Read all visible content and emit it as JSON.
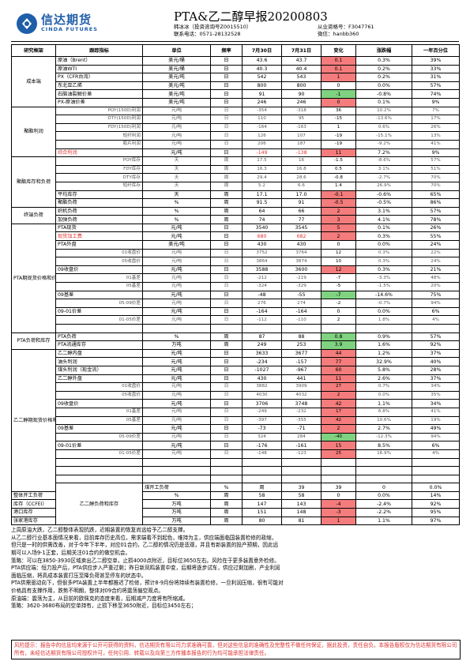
{
  "header": {
    "logo_cn": "信达期货",
    "logo_en": "CINDA FUTURES",
    "title": "PTA&乙二醇早报20200803",
    "author_line1": "韩冰冰（投资咨询号Z0015510）",
    "author_line2": "联系电话：0571-28132528",
    "license_line1": "从业资格号：F3047761",
    "license_line2": "微信：hanbb360"
  },
  "columns": [
    "研究框架",
    "跟踪指标",
    "单位",
    "频率",
    "7月30日",
    "7月31日",
    "变化",
    "涨跌幅",
    "一年百分位"
  ],
  "rows": [
    {
      "cat": "成本端",
      "span": 6,
      "name": "原油（Brent）",
      "unit": "美元/桶",
      "freq": "日",
      "v1": "43.6",
      "v2": "43.7",
      "chg": "0.1",
      "dir": "up",
      "pct": "0.3%",
      "pctile": "39%"
    },
    {
      "name": "原油WTI",
      "unit": "美元/桶",
      "freq": "日",
      "v1": "40.3",
      "v2": "40.4",
      "chg": "0.1",
      "dir": "up",
      "pct": "0.2%",
      "pctile": "33%"
    },
    {
      "name": "PX（CFR台湾）",
      "unit": "美元/吨",
      "freq": "日",
      "v1": "542",
      "v2": "543",
      "chg": "1",
      "dir": "up",
      "pct": "0.2%",
      "pctile": "31%"
    },
    {
      "name": "东北亚乙烯",
      "unit": "美元/吨",
      "freq": "日",
      "v1": "800",
      "v2": "800",
      "chg": "0",
      "dir": "",
      "pct": "0.0%",
      "pctile": "57%"
    },
    {
      "name": "石脑油裂解价差",
      "unit": "美元/吨",
      "freq": "日",
      "v1": "91",
      "v2": "90",
      "chg": "-1",
      "dir": "down",
      "pct": "-0.8%",
      "pctile": "74%"
    },
    {
      "name": "PX-原油价差",
      "unit": "美元/吨",
      "freq": "日",
      "v1": "246",
      "v2": "246",
      "chg": "0",
      "dir": "up",
      "pct": "0.1%",
      "pctile": "9%"
    },
    {
      "cat": "聚酯利润",
      "span": 6,
      "sub": true,
      "name": "POY(150D)利润",
      "unit": "元/吨",
      "freq": "日",
      "v1": "-354",
      "v2": "-318",
      "chg": "36",
      "dir": "",
      "pct": "10.2%",
      "pctile": "7%"
    },
    {
      "sub": true,
      "name": "DTY(150D)利润",
      "unit": "元/吨",
      "freq": "日",
      "v1": "110",
      "v2": "95",
      "chg": "-15",
      "dir": "",
      "pct": "-13.6%",
      "pctile": "17%"
    },
    {
      "sub": true,
      "name": "FDY(150D)利润",
      "unit": "元/吨",
      "freq": "日",
      "v1": "-164",
      "v2": "-163",
      "chg": "1",
      "dir": "",
      "pct": "0.6%",
      "pctile": "26%"
    },
    {
      "sub": true,
      "name": "短纤利润",
      "unit": "元/吨",
      "freq": "日",
      "v1": "126",
      "v2": "107",
      "chg": "-19",
      "dir": "",
      "pct": "-15.1%",
      "pctile": "13%"
    },
    {
      "sub": true,
      "name": "瓶片利润",
      "unit": "元/吨",
      "freq": "日",
      "v1": "206",
      "v2": "187",
      "chg": "-19",
      "dir": "",
      "pct": "-9.2%",
      "pctile": "41%"
    },
    {
      "red": true,
      "name": "综合利润",
      "unit": "元/吨",
      "freq": "日",
      "v1": "-149",
      "v2": "-138",
      "chg": "11",
      "dir": "up",
      "pct": "7.2%",
      "pctile": "9%"
    },
    {
      "cat": "聚酯库存和负荷",
      "span": 6,
      "sub": true,
      "name": "POY库存",
      "unit": "天",
      "freq": "周",
      "v1": "17.5",
      "v2": "16",
      "chg": "-1.5",
      "dir": "",
      "pct": "-8.6%",
      "pctile": "57%"
    },
    {
      "sub": true,
      "name": "FDY库存",
      "unit": "天",
      "freq": "周",
      "v1": "16.3",
      "v2": "16.8",
      "chg": "0.5",
      "dir": "",
      "pct": "3.1%",
      "pctile": "51%"
    },
    {
      "sub": true,
      "name": "DTY库存",
      "unit": "天",
      "freq": "周",
      "v1": "29.4",
      "v2": "28.6",
      "chg": "-0.8",
      "dir": "",
      "pct": "-2.7%",
      "pctile": "70%"
    },
    {
      "sub": true,
      "name": "短纤库存",
      "unit": "天",
      "freq": "周",
      "v1": "5.2",
      "v2": "6.6",
      "chg": "1.4",
      "dir": "",
      "pct": "26.9%",
      "pctile": "70%"
    },
    {
      "name": "平均库存",
      "unit": "天",
      "freq": "周",
      "v1": "17.1",
      "v2": "17.0",
      "chg": "-0.1",
      "dir": "up",
      "pct": "-0.6%",
      "pctile": "65%"
    },
    {
      "name": "聚酯负荷",
      "unit": "%",
      "freq": "周",
      "v1": "91.5",
      "v2": "91",
      "chg": "-0.5",
      "dir": "up",
      "pct": "-0.5%",
      "pctile": "86%"
    },
    {
      "cat": "终端负荷",
      "span": 2,
      "name": "织机负荷",
      "unit": "%",
      "freq": "周",
      "v1": "64",
      "v2": "66",
      "chg": "2",
      "dir": "up",
      "pct": "3.1%",
      "pctile": "57%"
    },
    {
      "name": "加弹负荷",
      "unit": "%",
      "freq": "周",
      "v1": "74",
      "v2": "77",
      "chg": "3",
      "dir": "up",
      "pct": "4.1%",
      "pctile": "78%"
    },
    {
      "cat": "PTA期现货价格和价差",
      "span": 13,
      "name": "PTA现货",
      "unit": "元/吨",
      "freq": "日",
      "v1": "3540",
      "v2": "3545",
      "chg": "5",
      "dir": "up",
      "pct": "0.1%",
      "pctile": "26%"
    },
    {
      "red": true,
      "name": "现货加工费",
      "unit": "元/吨",
      "freq": "日",
      "v1": "680",
      "v2": "682",
      "chg": "2",
      "dir": "up",
      "pct": "0.3%",
      "pctile": "55%"
    },
    {
      "name": "PTA外盘",
      "unit": "美元/吨",
      "freq": "日",
      "v1": "430",
      "v2": "430",
      "chg": "0",
      "dir": "",
      "pct": "0.0%",
      "pctile": "24%"
    },
    {
      "sub": true,
      "name": "01收盘价",
      "unit": "元/吨",
      "freq": "日",
      "v1": "3752",
      "v2": "3764",
      "chg": "12",
      "dir": "",
      "pct": "0.3%",
      "pctile": "22%"
    },
    {
      "sub": true,
      "name": "05收盘价",
      "unit": "元/吨",
      "freq": "日",
      "v1": "3864",
      "v2": "3874",
      "chg": "10",
      "dir": "",
      "pct": "0.3%",
      "pctile": "24%"
    },
    {
      "name": "09收盘价",
      "unit": "元/吨",
      "freq": "日",
      "v1": "3588",
      "v2": "3600",
      "chg": "12",
      "dir": "up",
      "pct": "0.3%",
      "pctile": "21%"
    },
    {
      "sub": true,
      "name": "01基差",
      "unit": "元/吨",
      "freq": "日",
      "v1": "-212",
      "v2": "-219",
      "chg": "-7",
      "dir": "",
      "pct": "-3.3%",
      "pctile": "48%"
    },
    {
      "sub": true,
      "name": "05基差",
      "unit": "元/吨",
      "freq": "日",
      "v1": "-324",
      "v2": "-329",
      "chg": "-5",
      "dir": "",
      "pct": "-1.5%",
      "pctile": "20%"
    },
    {
      "name": "09基差",
      "unit": "元/吨",
      "freq": "日",
      "v1": "-48",
      "v2": "-55",
      "chg": "-7",
      "dir": "down",
      "pct": "-14.6%",
      "pctile": "75%"
    },
    {
      "sub": true,
      "name": "05-09价差",
      "unit": "元/吨",
      "freq": "日",
      "v1": "276",
      "v2": "274",
      "chg": "-2",
      "dir": "",
      "pct": "-0.7%",
      "pctile": "94%"
    },
    {
      "name": "09-01价差",
      "unit": "元/吨",
      "freq": "日",
      "v1": "-164",
      "v2": "-164",
      "chg": "0",
      "dir": "",
      "pct": "0.0%",
      "pctile": "6%"
    },
    {
      "sub": true,
      "name": "01-05价差",
      "unit": "元/吨",
      "freq": "日",
      "v1": "-112",
      "v2": "-110",
      "chg": "2",
      "dir": "",
      "pct": "1.8%",
      "pctile": "4%"
    },
    {
      "name": "",
      "unit": "",
      "freq": "",
      "v1": "",
      "v2": "",
      "chg": "",
      "dir": "",
      "pct": "",
      "pctile": ""
    },
    {
      "cat": "PTA负荷和库存",
      "span": 2,
      "name": "PTA负荷",
      "unit": "%",
      "freq": "周",
      "v1": "87",
      "v2": "88",
      "chg": "0.8",
      "dir": "down",
      "pct": "0.9%",
      "pctile": "57%"
    },
    {
      "name": "PTA流通库存",
      "unit": "万吨",
      "freq": "周",
      "v1": "249",
      "v2": "253",
      "chg": "3.9",
      "dir": "down",
      "pct": "1.6%",
      "pctile": "92%"
    },
    {
      "cat": "乙二醇期现货价格和价差",
      "span": 17,
      "name": "乙二醇内盘",
      "unit": "元/吨",
      "freq": "日",
      "v1": "3633",
      "v2": "3677",
      "chg": "44",
      "dir": "up",
      "pct": "1.2%",
      "pctile": "37%"
    },
    {
      "name": "油头利润",
      "unit": "元/吨",
      "freq": "日",
      "v1": "-234",
      "v2": "-157",
      "chg": "77",
      "dir": "up",
      "pct": "32.9%",
      "pctile": "40%"
    },
    {
      "name": "煤头利润（现金流）",
      "unit": "元/吨",
      "freq": "日",
      "v1": "-1027",
      "v2": "-967",
      "chg": "60",
      "dir": "up",
      "pct": "5.8%",
      "pctile": "28%"
    },
    {
      "name": "乙二醇外盘",
      "unit": "元/吨",
      "freq": "日",
      "v1": "430",
      "v2": "441",
      "chg": "11",
      "dir": "up",
      "pct": "2.6%",
      "pctile": "37%"
    },
    {
      "sub": true,
      "name": "01收盘价",
      "unit": "元/吨",
      "freq": "日",
      "v1": "3882",
      "v2": "3909",
      "chg": "27",
      "dir": "up",
      "pct": "0.7%",
      "pctile": "34%"
    },
    {
      "sub": true,
      "name": "05收盘价",
      "unit": "元/吨",
      "freq": "日",
      "v1": "4030",
      "v2": "4032",
      "chg": "2",
      "dir": "up",
      "pct": "0.0%",
      "pctile": "35%"
    },
    {
      "name": "09收盘价",
      "unit": "元/吨",
      "freq": "日",
      "v1": "3706",
      "v2": "3748",
      "chg": "42",
      "dir": "up",
      "pct": "1.1%",
      "pctile": "34%"
    },
    {
      "sub": true,
      "name": "01基差",
      "unit": "元/吨",
      "freq": "日",
      "v1": "-249",
      "v2": "-232",
      "chg": "17",
      "dir": "up",
      "pct": "6.8%",
      "pctile": "41%"
    },
    {
      "sub": true,
      "name": "05基差",
      "unit": "元/吨",
      "freq": "日",
      "v1": "-397",
      "v2": "-355",
      "chg": "42",
      "dir": "up",
      "pct": "10.6%",
      "pctile": "19%"
    },
    {
      "name": "09基差",
      "unit": "元/吨",
      "freq": "日",
      "v1": "-73",
      "v2": "-71",
      "chg": "2",
      "dir": "up",
      "pct": "2.7%",
      "pctile": "49%"
    },
    {
      "sub": true,
      "name": "05-09价差",
      "unit": "元/吨",
      "freq": "日",
      "v1": "324",
      "v2": "284",
      "chg": "-40",
      "dir": "down",
      "pct": "-12.3%",
      "pctile": "94%"
    },
    {
      "name": "09-01价差",
      "unit": "元/吨",
      "freq": "日",
      "v1": "-176",
      "v2": "-161",
      "chg": "15",
      "dir": "up",
      "pct": "8.5%",
      "pctile": "6%"
    },
    {
      "sub": true,
      "name": "01-05价差",
      "unit": "元/吨",
      "freq": "日",
      "v1": "-148",
      "v2": "-123",
      "chg": "25",
      "dir": "up",
      "pct": "16.9%",
      "pctile": "4%"
    },
    {
      "name": "",
      "unit": "",
      "freq": "",
      "v1": "",
      "v2": "",
      "chg": "",
      "dir": "",
      "pct": "",
      "pctile": ""
    },
    {
      "name": "",
      "unit": "",
      "freq": "",
      "v1": "",
      "v2": "",
      "chg": "",
      "dir": "",
      "pct": "",
      "pctile": ""
    },
    {
      "name": "",
      "unit": "",
      "freq": "",
      "v1": "",
      "v2": "",
      "chg": "",
      "dir": "",
      "pct": "",
      "pctile": ""
    },
    {
      "cat": "乙二醇负荷和库存",
      "span": 5,
      "name": "煤开工负荷",
      "unit": "%",
      "freq": "周",
      "v1": "39",
      "v2": "39",
      "chg": "0",
      "dir": "",
      "pct": "0.0%",
      "pctile": "19%"
    },
    {
      "name": "整体开工负荷",
      "unit": "%",
      "freq": "周",
      "v1": "58",
      "v2": "58",
      "chg": "0",
      "dir": "",
      "pct": "0.0%",
      "pctile": "14%"
    },
    {
      "name": "库存（CCFEI）",
      "unit": "万吨",
      "freq": "周",
      "v1": "147",
      "v2": "143",
      "chg": "-4",
      "dir": "up",
      "pct": "-2.4%",
      "pctile": "92%"
    },
    {
      "name": "港口库存",
      "unit": "万吨",
      "freq": "周",
      "v1": "151",
      "v2": "148",
      "chg": "-3",
      "dir": "up",
      "pct": "-2.2%",
      "pctile": "95%"
    },
    {
      "name": "张家港库存",
      "unit": "万吨",
      "freq": "周",
      "v1": "80",
      "v2": "81",
      "chg": "1",
      "dir": "up",
      "pct": "1.1%",
      "pctile": "97%"
    }
  ],
  "commentary": [
    "上周原油大跌，乙二醇整体表现抗跌，近期装置的恢复尚远给予乙二醇支撑。",
    "从乙二醇行业基本面情况来看，目前库存历史高位，需求端看不到起色，维持为主，供应端面临国装置检修的政缩，",
    "但只是一时的供需改善，对于今年下半年，对应01合约，乙二醇的情况仍是悲观，并且有新装置的投产预期，因此远",
    "期可以入场9-1正套，后期关注01合约的做空机会。",
    "策略：可以在3850-3930区域卖出乙二醇空单，止损4000点附近，目标位3650左右。风险在于更多装置意外检修。",
    "PTA供应端：恒力投产后，PTA供应步入严重过剩；昨日新凤鸣装置中变，后期将逐步试车，供应过剩加剧，产业利润",
    "面临压缩，将高成本装置打压至降负荷甚至停车的状态中。",
    "PTA供需驱动向下，但很多PTA装置上半年都推迟了检修，预计8-9月份将持续有装置检修，一旦利润压缩，很有可能对",
    "价格具有支撑作用，跌势不明朗，整体对09合约将震荡偏空观点。",
    "原油端：震荡为主，从目前的欧佩克的态度来看，后期减产力度将有所缩减。",
    "策略：3620-3680布局的空单持有，止损下移至3650附近，目标位3450左右；"
  ],
  "disclaimer": "风险提示：报告中的信息均来源于公开可获得的资料，信达期货有限公司力求准确可靠，但对这些信息的准确性及完整性不做任何保证，据此投资，责任自负。本报告版权仅为信达期货有限公司所有，未经信达期货有限公司授权许可，任何引用、转载以及向第三方传播本报告的行为均可能承担法律责任。",
  "colors": {
    "brand": "#1f5ea8",
    "up": "#f47c7c",
    "down": "#7fd27f",
    "red_text": "#e03030"
  }
}
